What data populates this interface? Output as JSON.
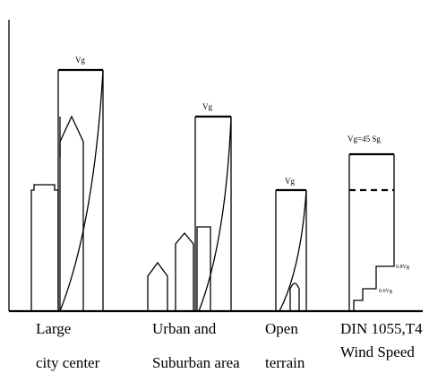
{
  "profiles": [
    {
      "label": "Vg"
    },
    {
      "label": "Vg"
    },
    {
      "label": "Vg"
    },
    {
      "label": "Vg=45 Sg"
    }
  ],
  "step_labels": [
    "0.8Vg",
    "0.6Vg"
  ],
  "terrains": [
    {
      "lines": [
        "Large",
        "city center"
      ]
    },
    {
      "lines": [
        "Urban and",
        "Suburban area"
      ]
    },
    {
      "lines": [
        "Open",
        "terrain"
      ]
    },
    {
      "lines": [
        "DIN 1055,T4",
        "Wind Speed"
      ]
    }
  ]
}
